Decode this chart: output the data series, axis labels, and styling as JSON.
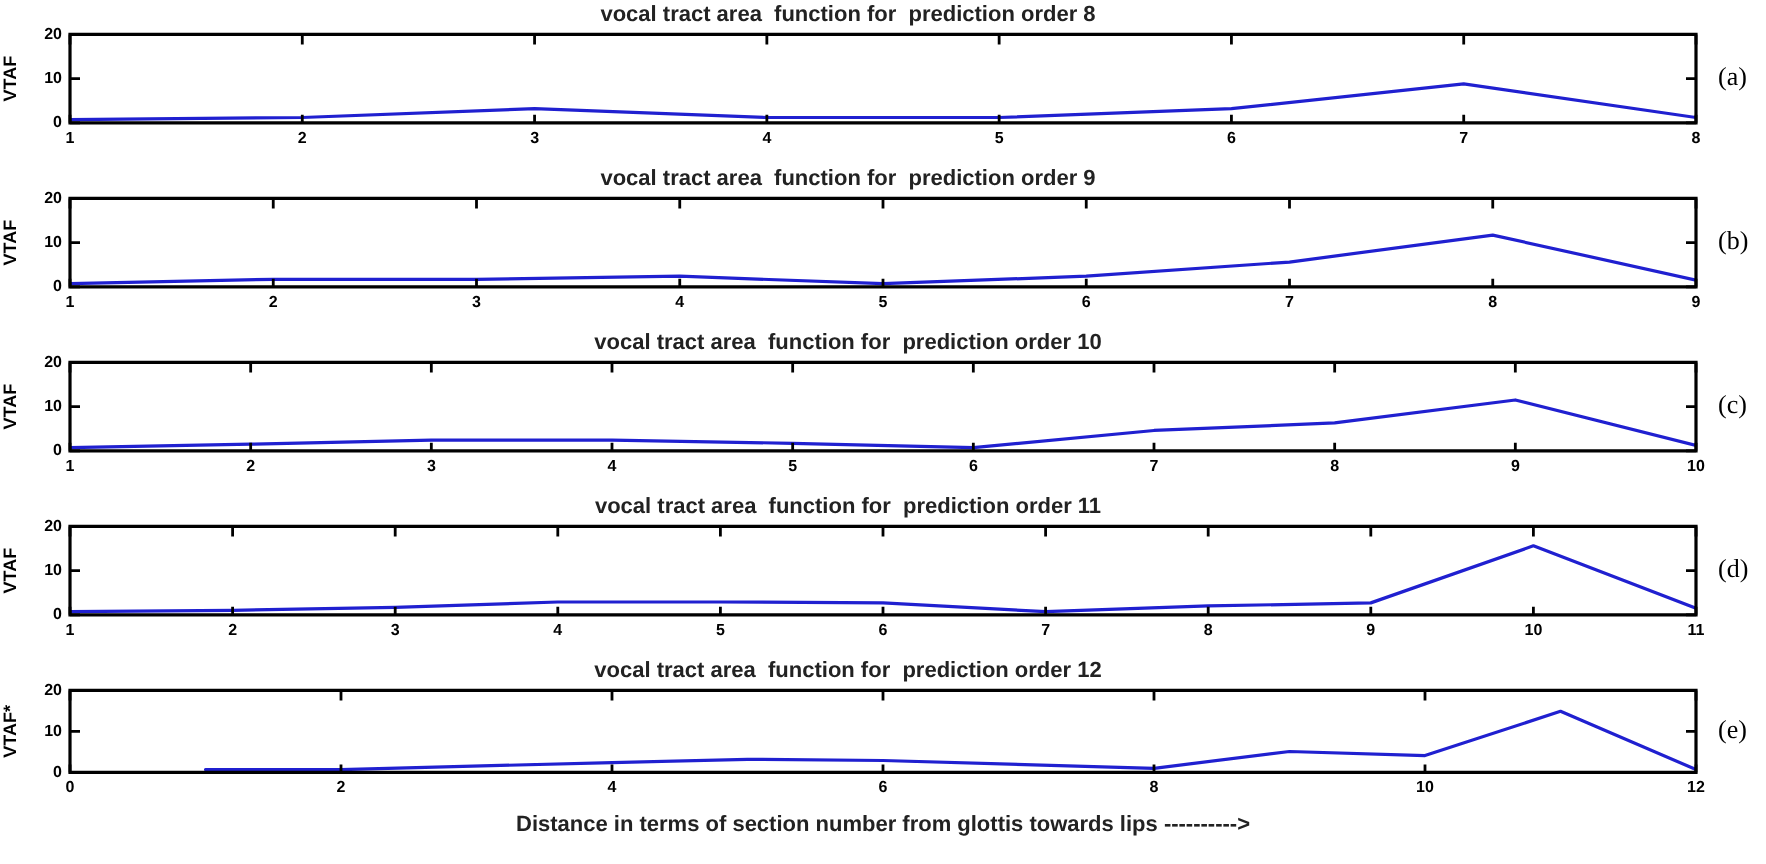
{
  "chart_data": [
    {
      "type": "line",
      "title": "vocal tract area  function for  prediction order 8",
      "ylabel": "VTAF",
      "x": [
        1,
        2,
        3,
        4,
        5,
        6,
        7,
        8
      ],
      "values": [
        0.7,
        1.2,
        3.2,
        1.2,
        1.2,
        3.2,
        8.8,
        1.2
      ],
      "color": "#2020d0",
      "xlim": [
        1,
        8
      ],
      "xticks": [
        1,
        2,
        3,
        4,
        5,
        6,
        7,
        8
      ],
      "ylim": [
        0,
        20
      ],
      "yticks": [
        0,
        10,
        20
      ],
      "grid": false,
      "marker": "none",
      "line_style": "solid",
      "annotations": [
        "(a)"
      ]
    },
    {
      "type": "line",
      "title": "vocal tract area  function for  prediction order 9",
      "ylabel": "VTAF",
      "x": [
        1,
        2,
        3,
        4,
        5,
        6,
        7,
        8,
        9
      ],
      "values": [
        0.7,
        1.7,
        1.7,
        2.4,
        0.7,
        2.4,
        5.6,
        11.7,
        1.5
      ],
      "color": "#2020d0",
      "xlim": [
        1,
        9
      ],
      "xticks": [
        1,
        2,
        3,
        4,
        5,
        6,
        7,
        8,
        9
      ],
      "ylim": [
        0,
        20
      ],
      "yticks": [
        0,
        10,
        20
      ],
      "grid": false,
      "marker": "none",
      "line_style": "solid",
      "annotations": [
        "(b)"
      ]
    },
    {
      "type": "line",
      "title": "vocal tract area  function for  prediction order 10",
      "ylabel": "VTAF",
      "x": [
        1,
        2,
        3,
        4,
        5,
        6,
        7,
        8,
        9,
        10
      ],
      "values": [
        0.7,
        1.5,
        2.4,
        2.4,
        1.7,
        0.7,
        4.6,
        6.3,
        11.5,
        1.2
      ],
      "color": "#2020d0",
      "xlim": [
        1,
        10
      ],
      "xticks": [
        1,
        2,
        3,
        4,
        5,
        6,
        7,
        8,
        9,
        10
      ],
      "ylim": [
        0,
        20
      ],
      "yticks": [
        0,
        10,
        20
      ],
      "grid": false,
      "marker": "none",
      "line_style": "solid",
      "annotations": [
        "(c)"
      ]
    },
    {
      "type": "line",
      "title": "vocal tract area  function for  prediction order 11",
      "ylabel": "VTAF",
      "x": [
        1,
        2,
        3,
        4,
        5,
        6,
        7,
        8,
        9,
        10,
        11
      ],
      "values": [
        0.7,
        1.0,
        1.7,
        2.9,
        2.9,
        2.7,
        0.7,
        2.0,
        2.7,
        15.6,
        1.5
      ],
      "color": "#2020d0",
      "xlim": [
        1,
        11
      ],
      "xticks": [
        1,
        2,
        3,
        4,
        5,
        6,
        7,
        8,
        9,
        10,
        11
      ],
      "ylim": [
        0,
        20
      ],
      "yticks": [
        0,
        10,
        20
      ],
      "grid": false,
      "marker": "none",
      "line_style": "solid",
      "annotations": [
        "(d)"
      ]
    },
    {
      "type": "line",
      "title": "vocal tract area  function for  prediction order 12",
      "xlabel": "Distance in terms of section number from glottis towards lips ---------->",
      "ylabel": "VTAF*",
      "x": [
        1,
        2,
        4,
        5,
        6,
        8,
        9,
        10,
        11,
        12
      ],
      "values": [
        0.7,
        0.7,
        2.4,
        3.2,
        2.9,
        1.0,
        5.1,
        4.1,
        14.9,
        0.7
      ],
      "color": "#2020d0",
      "xlim": [
        0,
        12
      ],
      "xticks": [
        0,
        2,
        4,
        6,
        8,
        10,
        12
      ],
      "ylim": [
        0,
        20
      ],
      "yticks": [
        0,
        10,
        20
      ],
      "grid": false,
      "marker": "none",
      "line_style": "solid",
      "annotations": [
        "(e)"
      ]
    }
  ]
}
